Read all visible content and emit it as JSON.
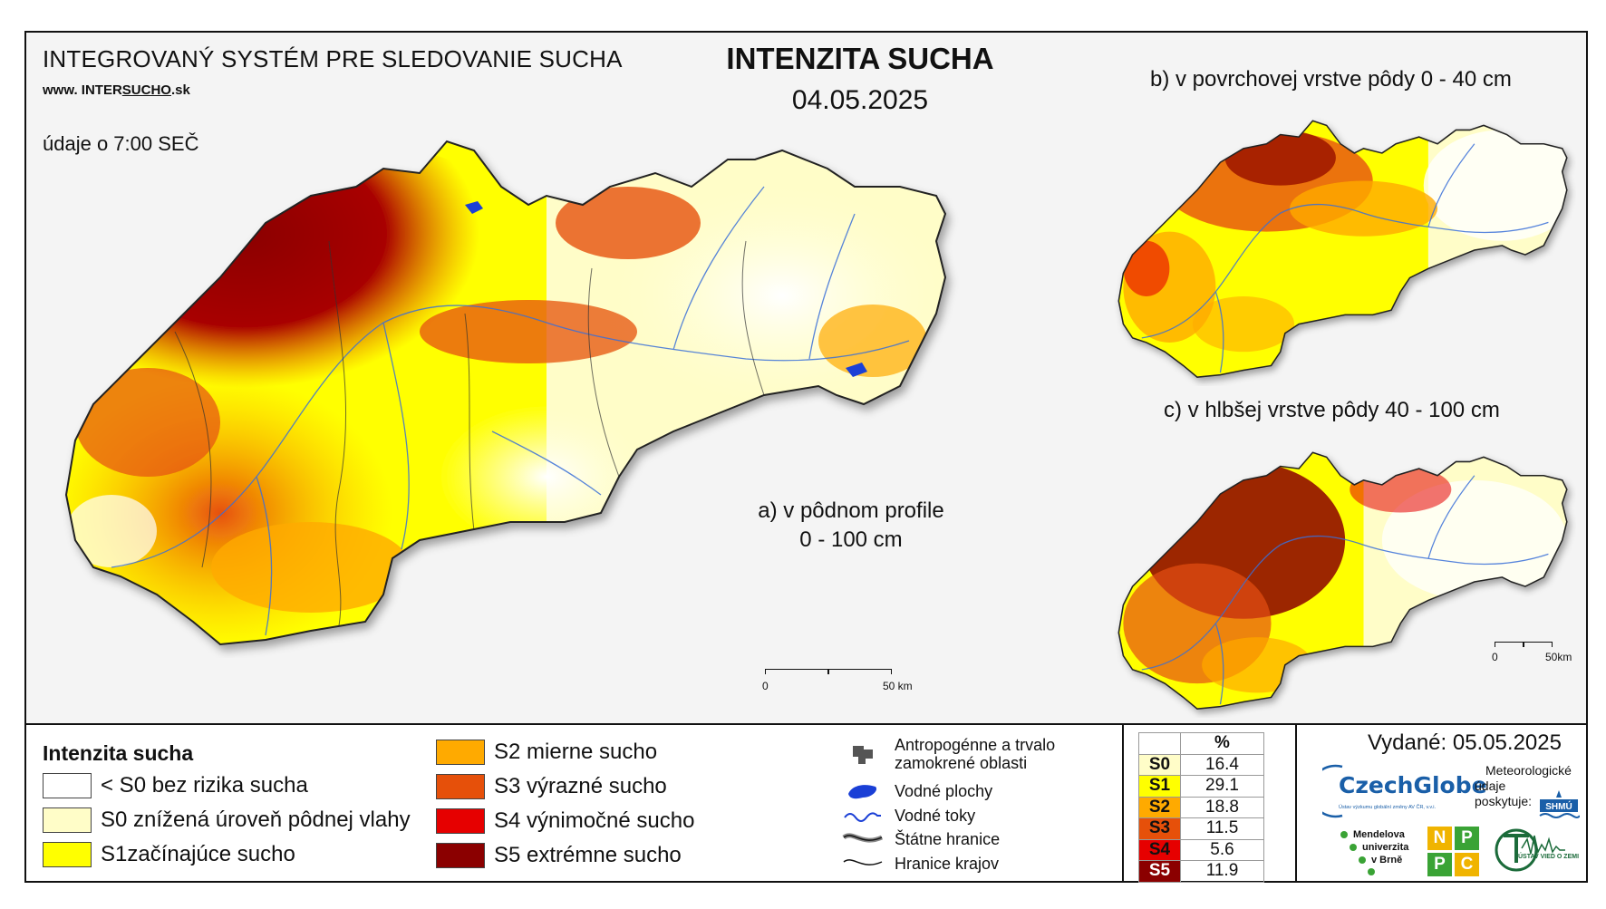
{
  "header": {
    "system_title": "INTEGROVANÝ SYSTÉM PRE SLEDOVANIE SUCHA",
    "web_prefix": "www. INTER",
    "web_underlined": "SUCHO",
    "web_suffix": ".sk",
    "obs_time": "údaje o 7:00 SEČ",
    "main_title": "INTENZITA SUCHA",
    "date": "04.05.2025"
  },
  "panels": {
    "a_line1": "a) v pôdnom profile",
    "a_line2": "0 - 100 cm",
    "b": "b) v povrchovej vrstve pôdy 0 - 40 cm",
    "c": "c) v hlbšej vrstve pôdy 40 - 100 cm"
  },
  "scale_main": {
    "zero": "0",
    "end": "50 km"
  },
  "scale_small": {
    "zero": "0",
    "end": "50km"
  },
  "legend": {
    "title": "Intenzita sucha",
    "classes": [
      {
        "label": "< S0 bez rizika sucha",
        "color": "#ffffff"
      },
      {
        "label": "S0 znížená úroveň pôdnej vlahy",
        "color": "#fffdc8"
      },
      {
        "label": "S1začínajúce sucho",
        "color": "#ffff00"
      },
      {
        "label": "S2 mierne sucho",
        "color": "#ffaa00"
      },
      {
        "label": "S3 výrazné sucho",
        "color": "#e6500a"
      },
      {
        "label": "S4 výnimočné sucho",
        "color": "#e60000"
      },
      {
        "label": "S5 extrémne sucho",
        "color": "#8b0000"
      }
    ],
    "symbols": [
      {
        "label_1": "Antropogénne a trvalo",
        "label_2": "zamokrené oblasti",
        "icon": "urban-area-icon"
      },
      {
        "label_1": "Vodné plochy",
        "icon": "water-body-icon"
      },
      {
        "label_1": "Vodné toky",
        "icon": "river-icon"
      },
      {
        "label_1": "Štátne hranice",
        "icon": "state-border-icon"
      },
      {
        "label_1": "Hranice krajov",
        "icon": "region-border-icon"
      }
    ]
  },
  "stats": {
    "header": "%",
    "rows": [
      {
        "code": "S0",
        "value": "16.4",
        "color": "#fffdc8"
      },
      {
        "code": "S1",
        "value": "29.1",
        "color": "#ffff00"
      },
      {
        "code": "S2",
        "value": "18.8",
        "color": "#ffaa00"
      },
      {
        "code": "S3",
        "value": "11.5",
        "color": "#e6500a"
      },
      {
        "code": "S4",
        "value": "5.6",
        "color": "#e60000"
      },
      {
        "code": "S5",
        "value": "11.9",
        "color": "#8b0000"
      }
    ]
  },
  "issued": "Vydané: 05.05.2025",
  "logos": {
    "czechglobe": "CzechGlobe",
    "czechglobe_sub": "Ústav výzkumu globální změny AV ČR, v.v.i.",
    "meteo_1": "Meteorologické",
    "meteo_2": "údaje",
    "meteo_3": "poskytuje:",
    "shmu": "SHMÚ",
    "mendel_1": "Mendelova",
    "mendel_2": "univerzita",
    "mendel_3": "v Brně",
    "nppc": [
      "N",
      "P",
      "P",
      "C"
    ],
    "ustav": "ÚSTAV VIED O ZEMI"
  }
}
